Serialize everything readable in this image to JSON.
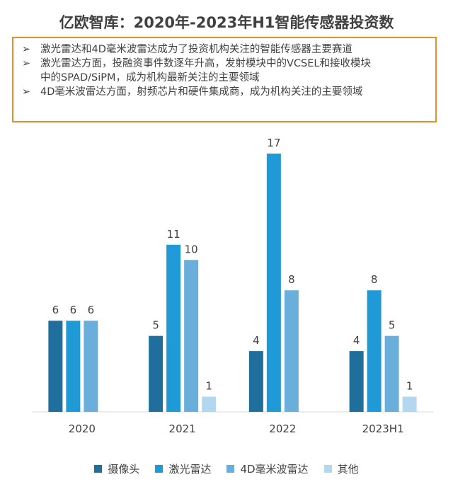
{
  "title": "亿欧智库：2020年-2023年H1智能传感器投资数",
  "bullets": [
    {
      "marker": "➢",
      "lines": [
        "激光雷达和4D毫米波雷达成为了投资机构关注的智能传感器主要赛道"
      ]
    },
    {
      "marker": "➢",
      "lines": [
        "激光雷达方面，投融资事件数逐年升高，发射模块中的VCSEL和接收模块",
        "中的SPAD/SiPM，成为机构最新关注的主要领域"
      ]
    },
    {
      "marker": "➢",
      "lines": [
        "4D毫米波雷达方面，射频芯片和硬件集成商，成为机构关注的主要领域"
      ]
    }
  ],
  "chart_data": {
    "type": "bar",
    "categories": [
      "2020",
      "2021",
      "2022",
      "2023H1"
    ],
    "series": [
      {
        "name": "摄像头",
        "color": "#1f6e9c",
        "values": [
          6,
          5,
          4,
          4
        ]
      },
      {
        "name": "激光雷达",
        "color": "#1f9ad6",
        "values": [
          6,
          11,
          17,
          8
        ]
      },
      {
        "name": "4D毫米波雷达",
        "color": "#6aaedc",
        "values": [
          6,
          10,
          8,
          5
        ]
      },
      {
        "name": "其他",
        "color": "#b3d7ee",
        "values": [
          null,
          1,
          null,
          1
        ]
      }
    ],
    "ylim": [
      0,
      18
    ],
    "xlabel": "",
    "ylabel": "",
    "grid": false,
    "legend_position": "bottom"
  }
}
